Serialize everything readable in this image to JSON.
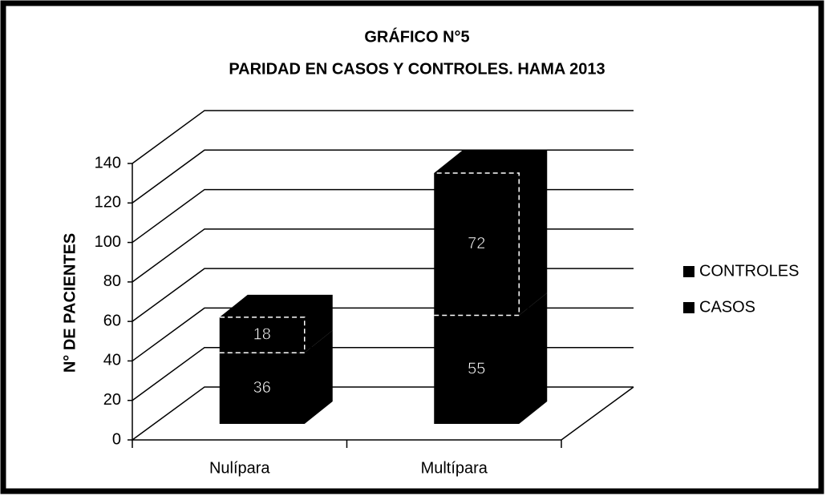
{
  "chart_data": {
    "type": "bar3d_stacked",
    "title": [
      "GRÁFICO N°5",
      "PARIDAD EN CASOS Y CONTROLES. HAMA 2013"
    ],
    "y_label": "N° DE PACIENTES",
    "categories": [
      "Nulípara",
      "Multípara"
    ],
    "series": [
      {
        "name": "CASOS",
        "color": "#000000",
        "values": [
          36,
          55
        ]
      },
      {
        "name": "CONTROLES",
        "color": "#000000",
        "values": [
          18,
          72
        ]
      }
    ],
    "ylim": [
      0,
      140
    ],
    "yticks": [
      0,
      20,
      40,
      60,
      80,
      100,
      120,
      140
    ],
    "grid": true,
    "legend": "right"
  }
}
